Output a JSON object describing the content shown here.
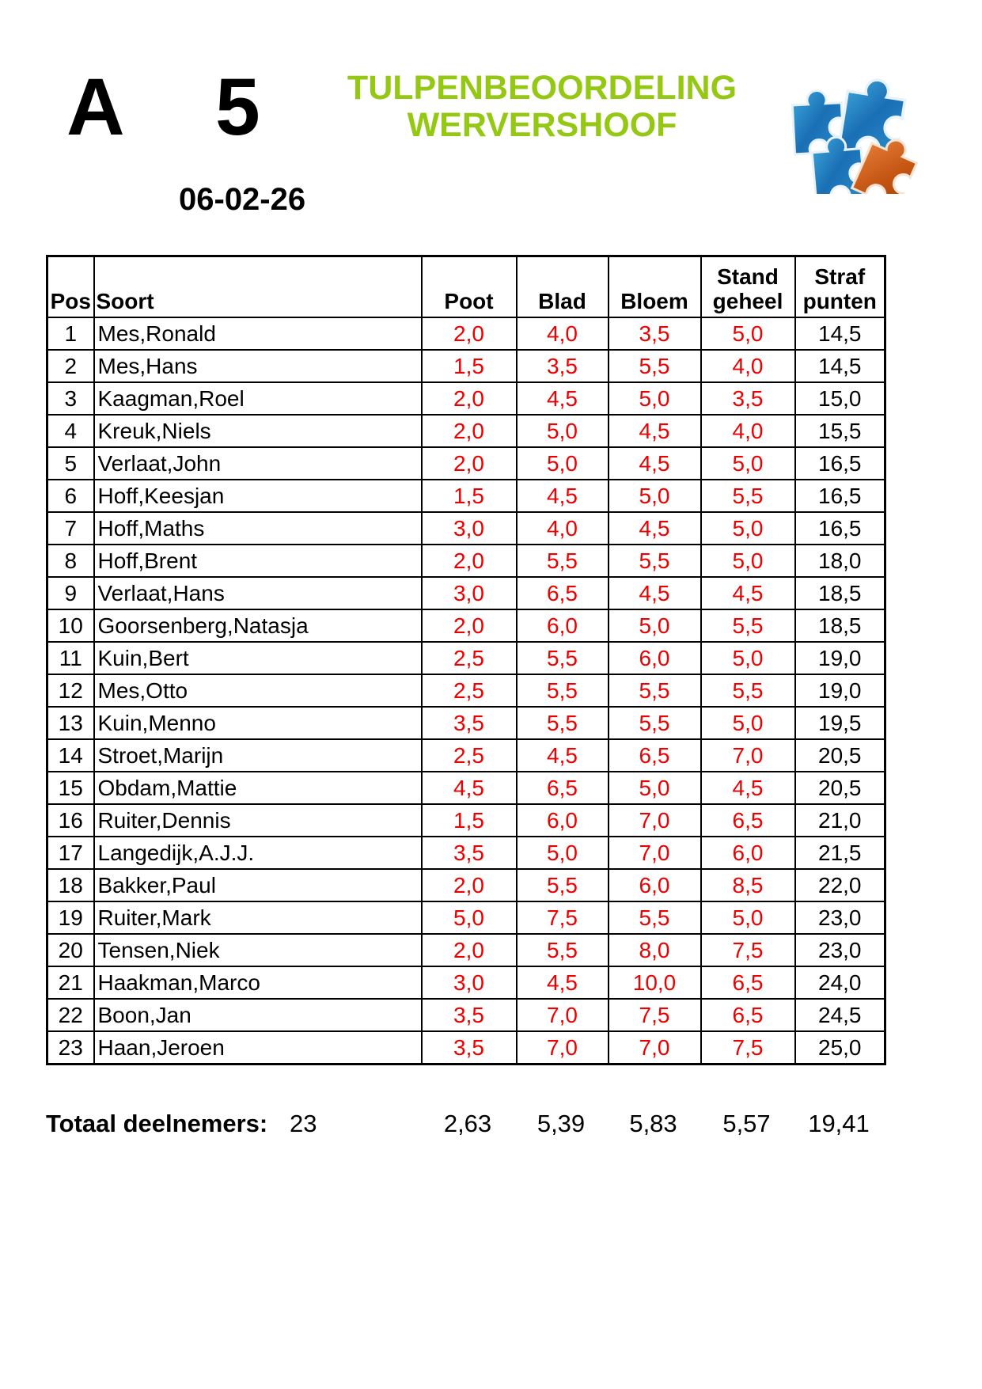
{
  "header": {
    "class_label": "A",
    "group_number": "5",
    "date": "06-02-26",
    "title_line1": "TULPENBEOORDELING",
    "title_line2": "WERVERSHOOF",
    "title_color": "#95C814",
    "logo": "puzzle-pieces-logo"
  },
  "table": {
    "score_color": "#EE0000",
    "headers": {
      "pos": "Pos",
      "soort": "Soort",
      "poot": "Poot",
      "blad": "Blad",
      "bloem": "Bloem",
      "stand_line1": "Stand",
      "stand_line2": "geheel",
      "straf_line1": "Straf",
      "straf_line2": "punten"
    },
    "rows": [
      {
        "pos": "1",
        "soort": "Mes,Ronald",
        "poot": "2,0",
        "blad": "4,0",
        "bloem": "3,5",
        "stand": "5,0",
        "straf": "14,5"
      },
      {
        "pos": "2",
        "soort": "Mes,Hans",
        "poot": "1,5",
        "blad": "3,5",
        "bloem": "5,5",
        "stand": "4,0",
        "straf": "14,5"
      },
      {
        "pos": "3",
        "soort": "Kaagman,Roel",
        "poot": "2,0",
        "blad": "4,5",
        "bloem": "5,0",
        "stand": "3,5",
        "straf": "15,0"
      },
      {
        "pos": "4",
        "soort": "Kreuk,Niels",
        "poot": "2,0",
        "blad": "5,0",
        "bloem": "4,5",
        "stand": "4,0",
        "straf": "15,5"
      },
      {
        "pos": "5",
        "soort": "Verlaat,John",
        "poot": "2,0",
        "blad": "5,0",
        "bloem": "4,5",
        "stand": "5,0",
        "straf": "16,5"
      },
      {
        "pos": "6",
        "soort": "Hoff,Keesjan",
        "poot": "1,5",
        "blad": "4,5",
        "bloem": "5,0",
        "stand": "5,5",
        "straf": "16,5"
      },
      {
        "pos": "7",
        "soort": "Hoff,Maths",
        "poot": "3,0",
        "blad": "4,0",
        "bloem": "4,5",
        "stand": "5,0",
        "straf": "16,5"
      },
      {
        "pos": "8",
        "soort": "Hoff,Brent",
        "poot": "2,0",
        "blad": "5,5",
        "bloem": "5,5",
        "stand": "5,0",
        "straf": "18,0"
      },
      {
        "pos": "9",
        "soort": "Verlaat,Hans",
        "poot": "3,0",
        "blad": "6,5",
        "bloem": "4,5",
        "stand": "4,5",
        "straf": "18,5"
      },
      {
        "pos": "10",
        "soort": "Goorsenberg,Natasja",
        "poot": "2,0",
        "blad": "6,0",
        "bloem": "5,0",
        "stand": "5,5",
        "straf": "18,5"
      },
      {
        "pos": "11",
        "soort": "Kuin,Bert",
        "poot": "2,5",
        "blad": "5,5",
        "bloem": "6,0",
        "stand": "5,0",
        "straf": "19,0"
      },
      {
        "pos": "12",
        "soort": "Mes,Otto",
        "poot": "2,5",
        "blad": "5,5",
        "bloem": "5,5",
        "stand": "5,5",
        "straf": "19,0"
      },
      {
        "pos": "13",
        "soort": "Kuin,Menno",
        "poot": "3,5",
        "blad": "5,5",
        "bloem": "5,5",
        "stand": "5,0",
        "straf": "19,5"
      },
      {
        "pos": "14",
        "soort": "Stroet,Marijn",
        "poot": "2,5",
        "blad": "4,5",
        "bloem": "6,5",
        "stand": "7,0",
        "straf": "20,5"
      },
      {
        "pos": "15",
        "soort": "Obdam,Mattie",
        "poot": "4,5",
        "blad": "6,5",
        "bloem": "5,0",
        "stand": "4,5",
        "straf": "20,5"
      },
      {
        "pos": "16",
        "soort": "Ruiter,Dennis",
        "poot": "1,5",
        "blad": "6,0",
        "bloem": "7,0",
        "stand": "6,5",
        "straf": "21,0"
      },
      {
        "pos": "17",
        "soort": "Langedijk,A.J.J.",
        "poot": "3,5",
        "blad": "5,0",
        "bloem": "7,0",
        "stand": "6,0",
        "straf": "21,5"
      },
      {
        "pos": "18",
        "soort": "Bakker,Paul",
        "poot": "2,0",
        "blad": "5,5",
        "bloem": "6,0",
        "stand": "8,5",
        "straf": "22,0"
      },
      {
        "pos": "19",
        "soort": "Ruiter,Mark",
        "poot": "5,0",
        "blad": "7,5",
        "bloem": "5,5",
        "stand": "5,0",
        "straf": "23,0"
      },
      {
        "pos": "20",
        "soort": "Tensen,Niek",
        "poot": "2,0",
        "blad": "5,5",
        "bloem": "8,0",
        "stand": "7,5",
        "straf": "23,0"
      },
      {
        "pos": "21",
        "soort": "Haakman,Marco",
        "poot": "3,0",
        "blad": "4,5",
        "bloem": "10,0",
        "stand": "6,5",
        "straf": "24,0"
      },
      {
        "pos": "22",
        "soort": "Boon,Jan",
        "poot": "3,5",
        "blad": "7,0",
        "bloem": "7,5",
        "stand": "6,5",
        "straf": "24,5"
      },
      {
        "pos": "23",
        "soort": "Haan,Jeroen",
        "poot": "3,5",
        "blad": "7,0",
        "bloem": "7,0",
        "stand": "7,5",
        "straf": "25,0"
      }
    ]
  },
  "totals": {
    "label": "Totaal deelnemers:",
    "count": "23",
    "poot": "2,63",
    "blad": "5,39",
    "bloem": "5,83",
    "stand": "5,57",
    "straf": "19,41"
  }
}
